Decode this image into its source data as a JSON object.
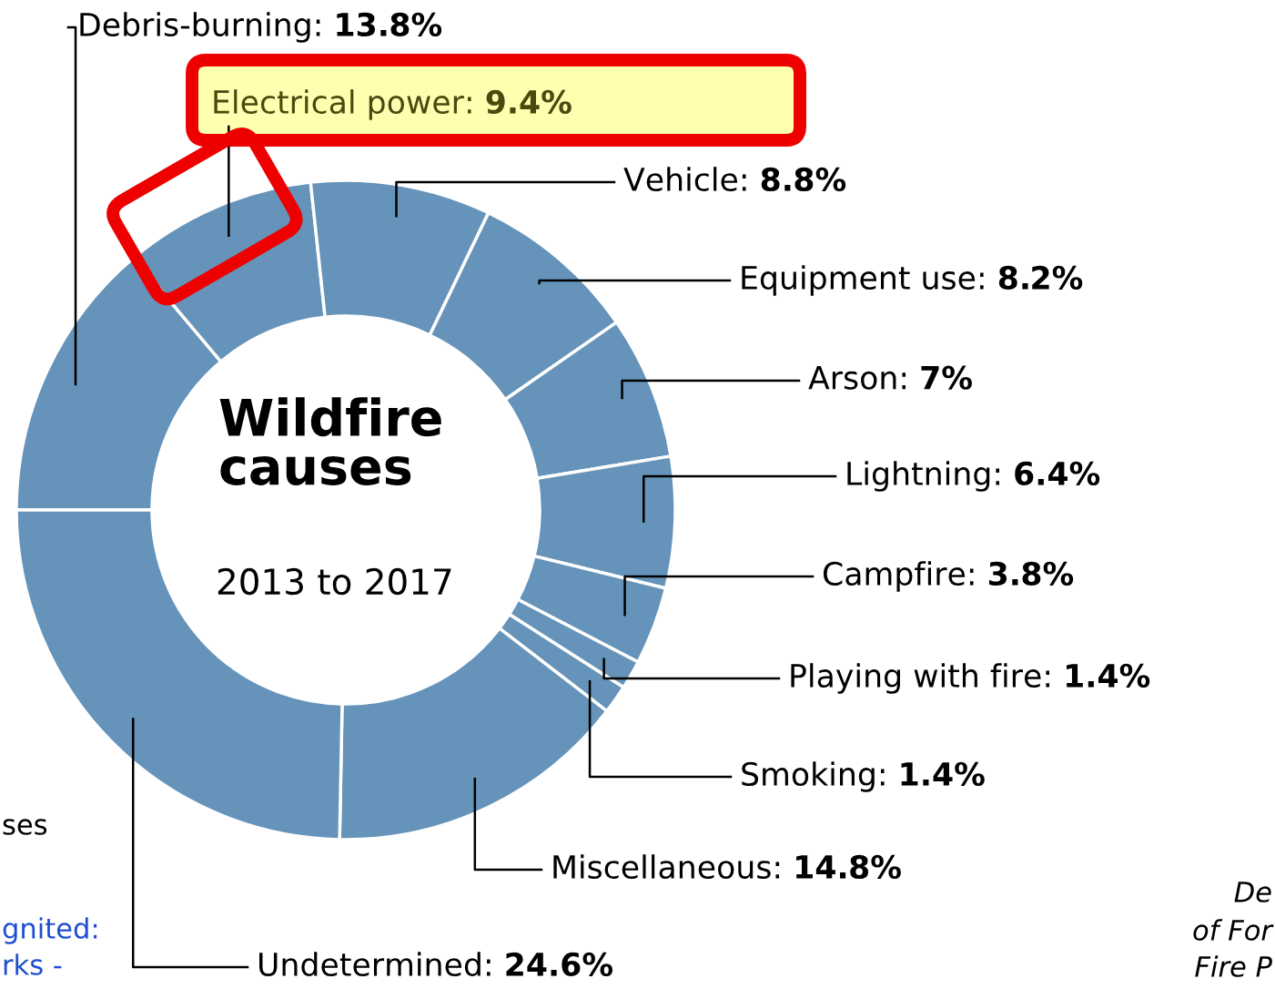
{
  "chart_data": {
    "type": "donut",
    "title": "Wildfire\ncauses",
    "subtitle": "2013 to 2017",
    "categories": [
      "Debris-burning",
      "Electrical power",
      "Vehicle",
      "Equipment use",
      "Arson",
      "Lightning",
      "Campfire",
      "Playing with fire",
      "Smoking",
      "Miscellaneous",
      "Undetermined"
    ],
    "values": [
      13.8,
      9.4,
      8.8,
      8.2,
      7,
      6.4,
      3.8,
      1.4,
      1.4,
      14.8,
      24.6
    ],
    "value_labels": [
      "13.8%",
      "9.4%",
      "8.8%",
      "8.2%",
      "7%",
      "6.4%",
      "3.8%",
      "1.4%",
      "1.4%",
      "14.8%",
      "24.6%"
    ],
    "colors": [
      "#6593b9",
      "#6593b9",
      "#6593b9",
      "#6593b9",
      "#6593b9",
      "#6593b9",
      "#6593b9",
      "#6593b9",
      "#6593b9",
      "#6593b9",
      "#6593b9"
    ],
    "annotations": [
      "ses",
      "gnited:",
      "rks -",
      "De",
      "of For",
      "Fire P"
    ]
  }
}
